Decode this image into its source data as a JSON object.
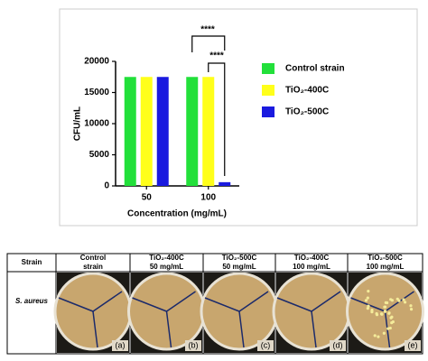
{
  "chart_data": {
    "type": "bar",
    "categories": [
      "50",
      "100"
    ],
    "series": [
      {
        "name": "Control strain",
        "color": "#22e03a",
        "values": [
          17500,
          17500
        ]
      },
      {
        "name": "TiO₂-400C",
        "color": "#ffff1a",
        "values": [
          17500,
          17500
        ]
      },
      {
        "name": "TiO₂-500C",
        "color": "#1a1adf",
        "values": [
          17500,
          600
        ]
      }
    ],
    "ylim": [
      0,
      20000
    ],
    "yticks": [
      0,
      5000,
      10000,
      15000,
      20000
    ],
    "ylabel": "CFU/mL",
    "xlabel": "Concentration (mg/mL)",
    "annotations": [
      "****",
      "****"
    ],
    "legend": "right"
  },
  "table": {
    "header": [
      [
        "Strain"
      ],
      [
        "Control",
        "strain"
      ],
      [
        "TiO₂-400C",
        "50 mg/mL"
      ],
      [
        "TiO₂-500C",
        "50 mg/mL"
      ],
      [
        "TiO₂-400C",
        "100 mg/mL"
      ],
      [
        "TiO₂-500C",
        "100 mg/mL"
      ]
    ],
    "rows": [
      [
        "S. aureus"
      ]
    ],
    "panels": [
      "(a)",
      "(b)",
      "(c)",
      "(d)",
      "(e)"
    ]
  }
}
